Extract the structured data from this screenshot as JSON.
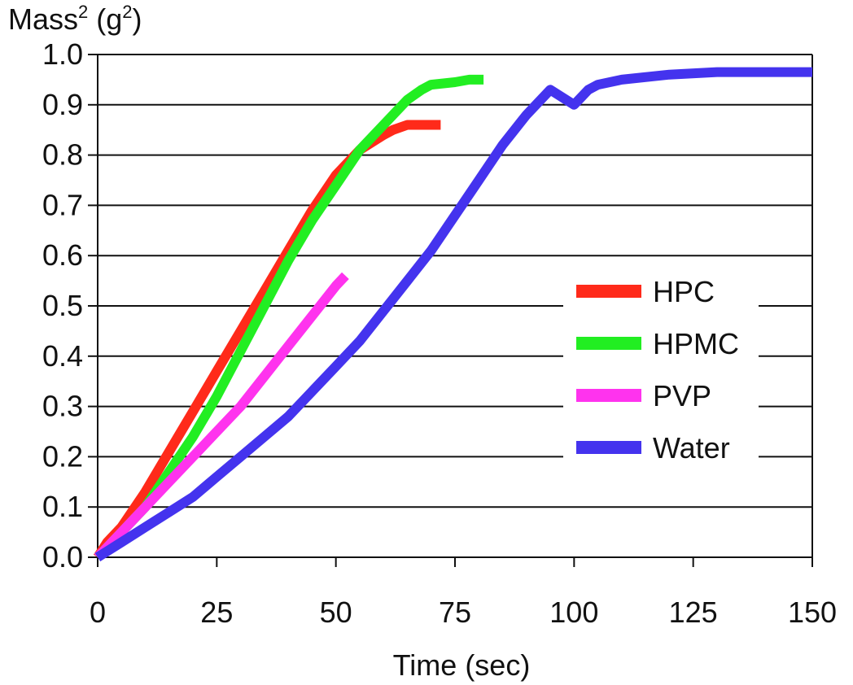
{
  "chart_data": {
    "type": "line",
    "title": "",
    "ylabel_base": "Mass",
    "ylabel_sup": "2",
    "ylabel_unit_open": " (g",
    "ylabel_unit_sup": "2",
    "ylabel_unit_close": ")",
    "xlabel": "Time (sec)",
    "xlim": [
      0,
      150
    ],
    "ylim": [
      0,
      1.0
    ],
    "x_ticks": [
      "0",
      "25",
      "50",
      "75",
      "100",
      "125",
      "150"
    ],
    "y_ticks": [
      "0.0",
      "0.1",
      "0.2",
      "0.3",
      "0.4",
      "0.5",
      "0.6",
      "0.7",
      "0.8",
      "0.9",
      "1.0"
    ],
    "grid": "horizontal",
    "legend_position": "right",
    "series": [
      {
        "name": "HPC",
        "color": "#ff2a1a",
        "x": [
          0,
          2,
          5,
          10,
          15,
          20,
          25,
          30,
          35,
          40,
          45,
          50,
          55,
          60,
          62,
          65,
          68,
          72
        ],
        "y": [
          0.0,
          0.03,
          0.06,
          0.13,
          0.21,
          0.29,
          0.37,
          0.45,
          0.53,
          0.61,
          0.69,
          0.76,
          0.81,
          0.84,
          0.85,
          0.86,
          0.86,
          0.86
        ]
      },
      {
        "name": "HPMC",
        "color": "#22ee22",
        "x": [
          0,
          2,
          5,
          10,
          15,
          20,
          25,
          30,
          35,
          40,
          45,
          50,
          55,
          60,
          65,
          68,
          70,
          75,
          78,
          81
        ],
        "y": [
          0.0,
          0.02,
          0.05,
          0.1,
          0.17,
          0.24,
          0.32,
          0.41,
          0.5,
          0.59,
          0.67,
          0.74,
          0.81,
          0.86,
          0.91,
          0.93,
          0.94,
          0.945,
          0.95,
          0.95
        ]
      },
      {
        "name": "PVP",
        "color": "#ff33ee",
        "x": [
          0,
          2,
          5,
          10,
          15,
          20,
          25,
          30,
          35,
          40,
          45,
          50,
          52
        ],
        "y": [
          0.0,
          0.02,
          0.05,
          0.1,
          0.15,
          0.2,
          0.25,
          0.3,
          0.36,
          0.42,
          0.48,
          0.54,
          0.56
        ]
      },
      {
        "name": "Water",
        "color": "#4433ee",
        "x": [
          0,
          5,
          10,
          15,
          20,
          25,
          30,
          35,
          40,
          45,
          50,
          55,
          60,
          65,
          70,
          75,
          80,
          85,
          90,
          95,
          100,
          103,
          105,
          110,
          120,
          130,
          150
        ],
        "y": [
          0.0,
          0.03,
          0.06,
          0.09,
          0.12,
          0.16,
          0.2,
          0.24,
          0.28,
          0.33,
          0.38,
          0.43,
          0.49,
          0.55,
          0.61,
          0.68,
          0.75,
          0.82,
          0.88,
          0.93,
          0.9,
          0.93,
          0.94,
          0.95,
          0.96,
          0.965,
          0.965
        ]
      }
    ]
  }
}
